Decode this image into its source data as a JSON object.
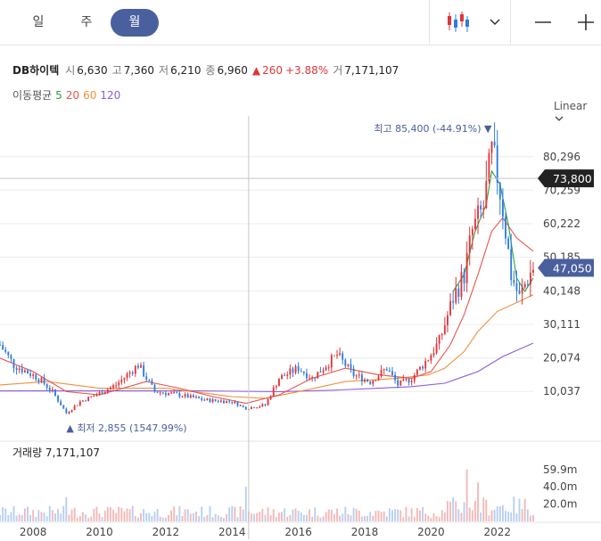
{
  "toolbar": {
    "periods": [
      "일",
      "주",
      "월"
    ],
    "active_period": "월",
    "chart_type_icon": "candlestick-icon",
    "dropdown_icon": "chevron-down-icon",
    "zoom_out_icon": "minus-icon",
    "zoom_in_icon": "plus-icon"
  },
  "info": {
    "name": "DB하이텍",
    "open_label": "시",
    "open": "6,630",
    "high_label": "고",
    "high": "7,360",
    "low_label": "저",
    "low": "6,210",
    "close_label": "종",
    "close": "6,960",
    "change": "260",
    "change_pct": "+3.88%",
    "volume_label": "거",
    "volume": "7,171,107"
  },
  "ma": {
    "label": "이동평균",
    "periods": [
      "5",
      "20",
      "60",
      "120"
    ],
    "colors": [
      "#2ea043",
      "#e8544e",
      "#f0903c",
      "#8e5bd8"
    ]
  },
  "scale_label": "Linear",
  "colors": {
    "up": "#e0353a",
    "down": "#2f7be0",
    "last_price_bg": "#4a5f9e",
    "crosshair_label_bg": "#222222",
    "annotation": "#4a5f9e",
    "active_period_bg": "#4a5f9e"
  },
  "chart_data": {
    "type": "candlestick",
    "title": "",
    "y_ticks": [
      10037,
      20074,
      30111,
      40148,
      50185,
      60222,
      70259,
      80296
    ],
    "y_tick_labels": [
      "10,037",
      "20,074",
      "30,111",
      "40,148",
      "50,185",
      "60,222",
      "70,259",
      "80,296"
    ],
    "ylim": [
      -3500,
      92500
    ],
    "x_ticks": [
      "2008",
      "2010",
      "2012",
      "2014",
      "2016",
      "2018",
      "2020",
      "2022"
    ],
    "xlim": [
      "2007-01",
      "2023-02"
    ],
    "crosshair": {
      "x": "2014-07",
      "y": 73800,
      "label": "73,800"
    },
    "last_price": {
      "value": 47050,
      "label": "47,050"
    },
    "max_annotation": {
      "prefix": "최고",
      "value": 85400,
      "text": "85,400 (-44.91%)",
      "date": "2021-11"
    },
    "min_annotation": {
      "prefix": "최저",
      "value": 2855,
      "text": "2,855 (1547.99%)",
      "date": "2009-01"
    },
    "volume": {
      "label": "거래량",
      "last": "7,171,107",
      "ticks": [
        20000000,
        40000000,
        59900000
      ],
      "tick_labels": [
        "20.0m",
        "40.0m",
        "59.9m"
      ],
      "ylim": [
        0,
        72000000
      ]
    },
    "anchors": [
      [
        "2007-01",
        24000
      ],
      [
        "2007-06",
        18000
      ],
      [
        "2008-03",
        14000
      ],
      [
        "2008-08",
        10000
      ],
      [
        "2009-01",
        3500
      ],
      [
        "2009-06",
        7000
      ],
      [
        "2010-01",
        9500
      ],
      [
        "2010-07",
        12000
      ],
      [
        "2011-03",
        18000
      ],
      [
        "2011-09",
        10000
      ],
      [
        "2012-06",
        9000
      ],
      [
        "2013-03",
        7500
      ],
      [
        "2014-01",
        7000
      ],
      [
        "2014-06",
        5000
      ],
      [
        "2015-01",
        6000
      ],
      [
        "2015-06",
        14000
      ],
      [
        "2016-01",
        17000
      ],
      [
        "2016-06",
        14000
      ],
      [
        "2017-03",
        21000
      ],
      [
        "2017-09",
        15000
      ],
      [
        "2018-03",
        13000
      ],
      [
        "2018-09",
        17000
      ],
      [
        "2019-01",
        12000
      ],
      [
        "2019-06",
        14000
      ],
      [
        "2019-12",
        20000
      ],
      [
        "2020-04",
        25000
      ],
      [
        "2020-09",
        38000
      ],
      [
        "2021-01",
        45000
      ],
      [
        "2021-04",
        58000
      ],
      [
        "2021-08",
        65000
      ],
      [
        "2021-11",
        81000
      ],
      [
        "2022-01",
        75000
      ],
      [
        "2022-03",
        65000
      ],
      [
        "2022-06",
        45000
      ],
      [
        "2022-09",
        38000
      ],
      [
        "2022-12",
        44000
      ],
      [
        "2023-02",
        47050
      ]
    ],
    "ma_lines": [
      {
        "name": "5",
        "color": "#2ea043",
        "points": [
          [
            "2020-09",
            40000
          ],
          [
            "2021-01",
            45000
          ],
          [
            "2021-05",
            58000
          ],
          [
            "2021-09",
            66000
          ],
          [
            "2021-11",
            76000
          ],
          [
            "2022-02",
            72000
          ],
          [
            "2022-05",
            60000
          ],
          [
            "2022-08",
            44000
          ],
          [
            "2022-11",
            40000
          ],
          [
            "2023-02",
            44000
          ]
        ]
      },
      {
        "name": "20",
        "color": "#e8544e",
        "points": [
          [
            "2007-01",
            20000
          ],
          [
            "2008-01",
            16000
          ],
          [
            "2009-01",
            10000
          ],
          [
            "2010-01",
            9000
          ],
          [
            "2011-06",
            13000
          ],
          [
            "2012-06",
            11000
          ],
          [
            "2013-06",
            8500
          ],
          [
            "2014-06",
            6500
          ],
          [
            "2015-06",
            9000
          ],
          [
            "2016-06",
            14000
          ],
          [
            "2017-06",
            17000
          ],
          [
            "2018-06",
            15000
          ],
          [
            "2019-06",
            14000
          ],
          [
            "2020-01",
            16000
          ],
          [
            "2020-08",
            24000
          ],
          [
            "2021-01",
            33000
          ],
          [
            "2021-06",
            45000
          ],
          [
            "2021-11",
            58000
          ],
          [
            "2022-03",
            62000
          ],
          [
            "2022-08",
            56000
          ],
          [
            "2023-02",
            52000
          ]
        ]
      },
      {
        "name": "60",
        "color": "#f0903c",
        "points": [
          [
            "2007-01",
            12000
          ],
          [
            "2008-06",
            13000
          ],
          [
            "2010-01",
            11000
          ],
          [
            "2012-01",
            11000
          ],
          [
            "2014-01",
            8500
          ],
          [
            "2015-01",
            8000
          ],
          [
            "2016-01",
            10000
          ],
          [
            "2017-06",
            13000
          ],
          [
            "2019-01",
            14000
          ],
          [
            "2019-12",
            15000
          ],
          [
            "2020-06",
            17000
          ],
          [
            "2021-01",
            22000
          ],
          [
            "2021-06",
            28000
          ],
          [
            "2022-01",
            34000
          ],
          [
            "2022-09",
            37000
          ],
          [
            "2023-02",
            39000
          ]
        ]
      },
      {
        "name": "120",
        "color": "#8e5bd8",
        "points": [
          [
            "2007-01",
            10200
          ],
          [
            "2010-01",
            10200
          ],
          [
            "2013-01",
            10200
          ],
          [
            "2015-06",
            10000
          ],
          [
            "2017-01",
            10400
          ],
          [
            "2018-06",
            11000
          ],
          [
            "2019-06",
            11500
          ],
          [
            "2020-06",
            12500
          ],
          [
            "2021-06",
            16000
          ],
          [
            "2022-03",
            20500
          ],
          [
            "2023-02",
            24500
          ]
        ]
      }
    ]
  }
}
